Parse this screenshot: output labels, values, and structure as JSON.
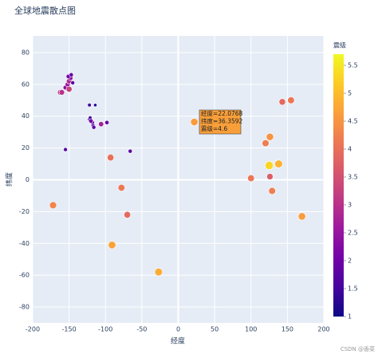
{
  "chart_data": {
    "type": "scatter",
    "title": "全球地震散点图",
    "x_label": "经度",
    "y_label": "纬度",
    "colorbar_title": "震级",
    "x": [
      -162,
      -160,
      -155,
      -152,
      -150,
      -148,
      -151,
      -147,
      -150,
      -145,
      -122,
      -121,
      -118,
      -117,
      -116,
      -120,
      -122,
      -114,
      -106,
      -98,
      -155,
      -66,
      -93,
      -78,
      -70,
      -172,
      -91,
      -27,
      22.0768,
      100,
      120,
      126,
      125,
      138,
      126,
      129,
      143,
      155,
      170
    ],
    "values": [
      55,
      55,
      58,
      60,
      62,
      64,
      65,
      66,
      57,
      61,
      38,
      39,
      36,
      34,
      33,
      37,
      47,
      47,
      35,
      36,
      19,
      18,
      14,
      -5,
      -22,
      -16,
      -41,
      -58,
      36.3592,
      1,
      23,
      27,
      9,
      10,
      2,
      -7,
      49,
      50,
      -23
    ],
    "magnitude": [
      3.2,
      3.0,
      2.3,
      2.6,
      2.9,
      2.4,
      2.1,
      1.9,
      3.3,
      1.7,
      1.6,
      1.4,
      1.9,
      1.7,
      1.8,
      2.1,
      1.5,
      1.2,
      2.7,
      1.9,
      1.7,
      1.8,
      4.0,
      4.1,
      3.9,
      4.3,
      4.7,
      4.8,
      4.6,
      4.1,
      4.2,
      4.5,
      5.3,
      4.9,
      3.7,
      4.2,
      3.9,
      4.1,
      4.6
    ],
    "xlim": [
      -200,
      200
    ],
    "xticks": [
      -200,
      -150,
      -100,
      -50,
      0,
      50,
      100,
      150,
      200
    ],
    "ylim": [
      -90,
      90.5
    ],
    "yticks": [
      -80,
      -60,
      -40,
      -20,
      0,
      20,
      40,
      60,
      80
    ],
    "clim": [
      1,
      5.7
    ],
    "cticks": [
      1,
      1.5,
      2,
      2.5,
      3,
      3.5,
      4,
      4.5,
      5,
      5.5
    ],
    "colorscale": [
      "#0d0887",
      "#46039f",
      "#7201a8",
      "#9c179e",
      "#bd3786",
      "#d8576b",
      "#ed7953",
      "#fb9f3a",
      "#fdca26",
      "#f0f921"
    ],
    "grid": true,
    "hover_lines": [
      "经度=22.0768",
      "纬度=36.3592",
      "震级=4.6"
    ],
    "watermark": "CSDN @香菜"
  }
}
